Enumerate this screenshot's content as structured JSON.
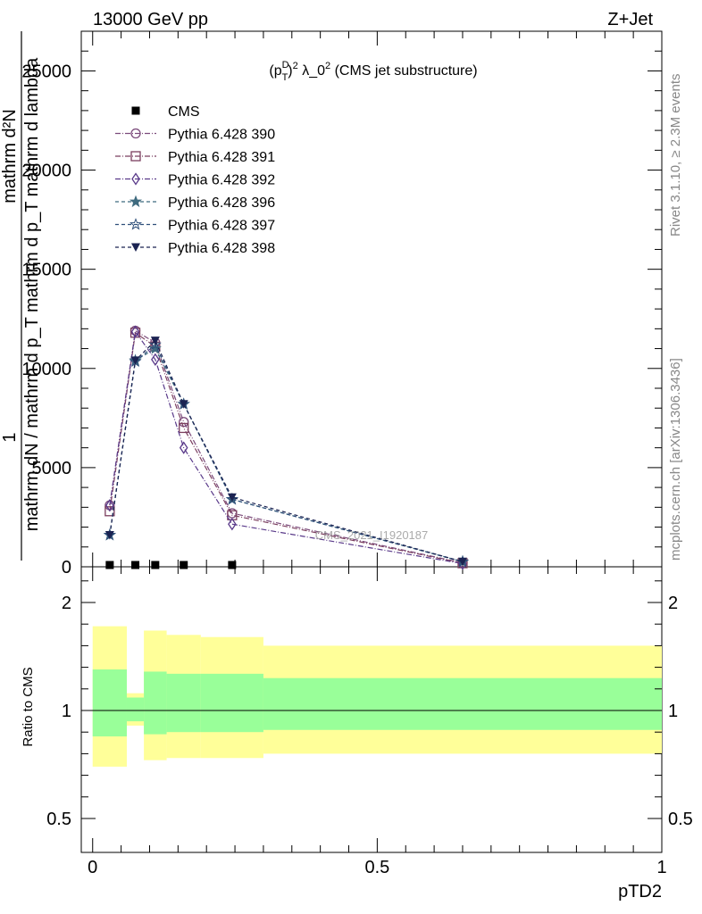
{
  "header": {
    "left": "13000 GeV pp",
    "right": "Z+Jet",
    "plot_title": "(p_T^D)^2 λ_0^2 (CMS jet substructure)"
  },
  "side": {
    "rivet": "Rivet 3.1.10, ≥ 2.3M events",
    "mcplots": "mcplots.cern.ch [arXiv:1306.3436]"
  },
  "watermark": "CMS_2021_I1920187",
  "colors": {
    "ratio_band_inner": "#99ff99",
    "ratio_band_outer": "#ffff99"
  },
  "chart_data": [
    {
      "type": "line",
      "ylabel_parts": [
        "1",
        "mathrm dN / mathrm d p_T mathrm d p_T mathrm d lambda",
        "mathrm d²N"
      ],
      "ylim": [
        0,
        27000
      ],
      "yticks": [
        0,
        5000,
        10000,
        15000,
        20000,
        25000
      ],
      "ytick_labels": [
        "0",
        "5000",
        "10000",
        "15000",
        "20000",
        "25000"
      ],
      "xlim": [
        -0.02,
        1.0
      ],
      "x": [
        0.03,
        0.075,
        0.11,
        0.16,
        0.245,
        0.65
      ],
      "legend_placement": "top-left",
      "series": [
        {
          "name": "CMS",
          "marker": "square",
          "color": "#000000",
          "values": [
            0,
            0,
            0,
            0,
            0,
            null
          ]
        },
        {
          "name": "Pythia 6.428 390",
          "marker": "circle",
          "color": "#7b4a7b",
          "dash": "6,2,1,2",
          "values": [
            3100,
            11900,
            11300,
            7300,
            2700,
            200
          ]
        },
        {
          "name": "Pythia 6.428 391",
          "marker": "square-open",
          "color": "#7b3f5f",
          "dash": "6,2,1,2",
          "values": [
            2800,
            11800,
            11100,
            7000,
            2600,
            180
          ]
        },
        {
          "name": "Pythia 6.428 392",
          "marker": "diamond-open",
          "color": "#5a3a8a",
          "dash": "6,2,1,2",
          "values": [
            3100,
            11850,
            10450,
            6000,
            2150,
            160
          ]
        },
        {
          "name": "Pythia 6.428 396",
          "marker": "star-filled",
          "color": "#3f6b7f",
          "dash": "4,3",
          "values": [
            1600,
            10400,
            11000,
            8200,
            3400,
            260
          ]
        },
        {
          "name": "Pythia 6.428 397",
          "marker": "star-open",
          "color": "#2e4f7a",
          "dash": "4,3",
          "values": [
            1600,
            10350,
            11200,
            8200,
            3400,
            250
          ]
        },
        {
          "name": "Pythia 6.428 398",
          "marker": "triangle-down",
          "color": "#1b2352",
          "dash": "4,3",
          "values": [
            1600,
            10400,
            11400,
            8200,
            3500,
            260
          ]
        }
      ]
    },
    {
      "type": "area",
      "ylabel": "Ratio to CMS",
      "xlabel": "pTD2",
      "ylim": [
        0.4,
        2.5
      ],
      "yticks": [
        0.5,
        1,
        2
      ],
      "ytick_labels": [
        "0.5",
        "1",
        "2"
      ],
      "xlim": [
        -0.02,
        1.0
      ],
      "xticks": [
        0,
        0.5,
        1
      ],
      "xtick_labels": [
        "0",
        "0.5",
        "1"
      ],
      "bins": [
        {
          "lo": 0.0,
          "hi": 0.06,
          "inner": [
            0.88,
            1.19
          ],
          "outer": [
            0.74,
            1.39
          ]
        },
        {
          "lo": 0.06,
          "hi": 0.09,
          "inner": [
            0.95,
            1.06
          ],
          "outer": [
            0.93,
            1.08
          ]
        },
        {
          "lo": 0.09,
          "hi": 0.13,
          "inner": [
            0.89,
            1.18
          ],
          "outer": [
            0.77,
            1.37
          ]
        },
        {
          "lo": 0.13,
          "hi": 0.19,
          "inner": [
            0.9,
            1.17
          ],
          "outer": [
            0.78,
            1.35
          ]
        },
        {
          "lo": 0.19,
          "hi": 0.3,
          "inner": [
            0.9,
            1.17
          ],
          "outer": [
            0.78,
            1.34
          ]
        },
        {
          "lo": 0.3,
          "hi": 1.0,
          "inner": [
            0.91,
            1.15
          ],
          "outer": [
            0.8,
            1.3
          ]
        }
      ]
    }
  ]
}
